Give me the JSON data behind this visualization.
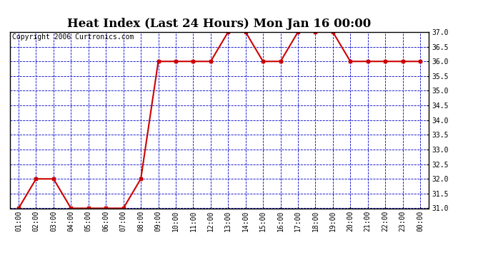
{
  "title": "Heat Index (Last 24 Hours) Mon Jan 16 00:00",
  "copyright": "Copyright 2006 Curtronics.com",
  "x_labels": [
    "01:00",
    "02:00",
    "03:00",
    "04:00",
    "05:00",
    "06:00",
    "07:00",
    "08:00",
    "09:00",
    "10:00",
    "11:00",
    "12:00",
    "13:00",
    "14:00",
    "15:00",
    "16:00",
    "17:00",
    "18:00",
    "19:00",
    "20:00",
    "21:00",
    "22:00",
    "23:00",
    "00:00"
  ],
  "y_values": [
    31.0,
    32.0,
    32.0,
    31.0,
    31.0,
    31.0,
    31.0,
    32.0,
    36.0,
    36.0,
    36.0,
    36.0,
    37.0,
    37.0,
    36.0,
    36.0,
    37.0,
    37.0,
    37.0,
    36.0,
    36.0,
    36.0,
    36.0,
    36.0
  ],
  "ylim": [
    31.0,
    37.0
  ],
  "yticks": [
    31.0,
    31.5,
    32.0,
    32.5,
    33.0,
    33.5,
    34.0,
    34.5,
    35.0,
    35.5,
    36.0,
    36.5,
    37.0
  ],
  "line_color": "#cc0000",
  "marker": "s",
  "marker_size": 2.5,
  "grid_color": "#0000cc",
  "background_color": "#ffffff",
  "title_fontsize": 12,
  "copyright_fontsize": 7,
  "tick_fontsize": 7,
  "figsize": [
    6.9,
    3.75
  ],
  "dpi": 100
}
